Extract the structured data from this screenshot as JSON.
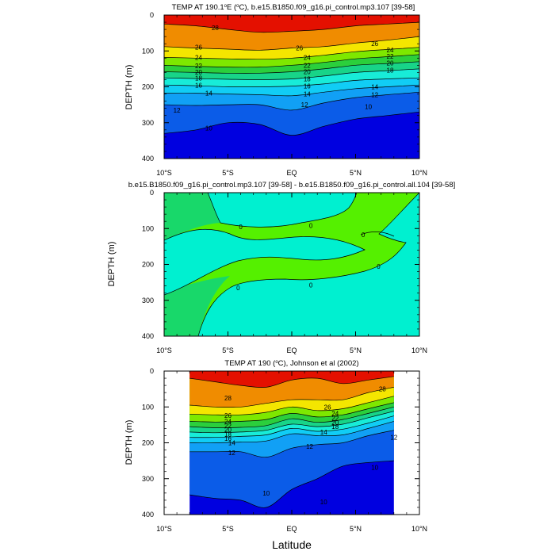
{
  "figure": {
    "xlabel": "Latitude"
  },
  "chart_data": [
    {
      "type": "contour",
      "title_pre": "TEMP AT 190.1",
      "title_deg": "o",
      "title_mid": "E (",
      "title_unitdeg": "o",
      "title_post": "C), b.e15.B1850.f09_g16.pi_control.mp3.107 [39-58]",
      "ylabel": "DEPTH (m)",
      "xlim": [
        -10,
        10
      ],
      "ylim": [
        0,
        400
      ],
      "x_ticks": [
        "10°S",
        "5°S",
        "EQ",
        "5°N",
        "10°N"
      ],
      "y_ticks": [
        "0",
        "100",
        "200",
        "300",
        "400"
      ],
      "contour_levels": [
        10,
        12,
        14,
        16,
        18,
        20,
        22,
        24,
        26,
        28
      ],
      "isotherm_depths": {
        "lat": [
          -10,
          -7.5,
          -5,
          -2.5,
          0,
          2.5,
          5,
          7.5,
          10
        ],
        "28": [
          25,
          30,
          40,
          48,
          45,
          40,
          30,
          25,
          20
        ],
        "26": [
          88,
          92,
          95,
          98,
          92,
          88,
          78,
          70,
          60
        ],
        "24": [
          118,
          120,
          122,
          123,
          120,
          112,
          102,
          96,
          90
        ],
        "22": [
          140,
          143,
          145,
          145,
          140,
          132,
          122,
          116,
          110
        ],
        "20": [
          158,
          160,
          162,
          162,
          158,
          150,
          140,
          135,
          130
        ],
        "18": [
          175,
          177,
          179,
          180,
          178,
          170,
          160,
          155,
          150
        ],
        "16": [
          195,
          197,
          200,
          200,
          198,
          192,
          182,
          178,
          175
        ],
        "14": [
          218,
          218,
          220,
          222,
          225,
          215,
          205,
          200,
          195
        ],
        "12": [
          250,
          252,
          250,
          250,
          265,
          245,
          230,
          222,
          215
        ],
        "10": [
          330,
          320,
          300,
          305,
          335,
          310,
          290,
          280,
          270
        ]
      },
      "labels": [
        {
          "text": "28",
          "lat": -6.0,
          "depth": 35
        },
        {
          "text": "26",
          "lat": -7.3,
          "depth": 90
        },
        {
          "text": "26",
          "lat": 0.6,
          "depth": 92
        },
        {
          "text": "26",
          "lat": 6.5,
          "depth": 80
        },
        {
          "text": "24",
          "lat": -7.3,
          "depth": 118
        },
        {
          "text": "24",
          "lat": 1.2,
          "depth": 118
        },
        {
          "text": "24",
          "lat": 7.7,
          "depth": 97
        },
        {
          "text": "22",
          "lat": -7.3,
          "depth": 141
        },
        {
          "text": "22",
          "lat": 1.2,
          "depth": 140
        },
        {
          "text": "22",
          "lat": 7.7,
          "depth": 115
        },
        {
          "text": "20",
          "lat": -7.3,
          "depth": 159
        },
        {
          "text": "20",
          "lat": 1.2,
          "depth": 158
        },
        {
          "text": "20",
          "lat": 7.7,
          "depth": 134
        },
        {
          "text": "18",
          "lat": -7.3,
          "depth": 176
        },
        {
          "text": "18",
          "lat": 1.2,
          "depth": 178
        },
        {
          "text": "18",
          "lat": 7.7,
          "depth": 154
        },
        {
          "text": "16",
          "lat": -7.3,
          "depth": 196
        },
        {
          "text": "16",
          "lat": 1.2,
          "depth": 198
        },
        {
          "text": "14",
          "lat": -6.5,
          "depth": 218
        },
        {
          "text": "14",
          "lat": 1.2,
          "depth": 220
        },
        {
          "text": "14",
          "lat": 6.5,
          "depth": 200
        },
        {
          "text": "12",
          "lat": 1.0,
          "depth": 250
        },
        {
          "text": "12",
          "lat": 6.5,
          "depth": 222
        },
        {
          "text": "12",
          "lat": -9.0,
          "depth": 265
        },
        {
          "text": "10",
          "lat": -6.5,
          "depth": 315
        },
        {
          "text": "10",
          "lat": 6.0,
          "depth": 255
        }
      ]
    },
    {
      "type": "contour",
      "title": "b.e15.B1850.f09_g16.pi_control.mp3.107 [39-58] - b.e15.B1850.f09_g16.pi_control.all.104 [39-58]",
      "ylabel": "DEPTH (m)",
      "xlim": [
        -10,
        10
      ],
      "ylim": [
        0,
        400
      ],
      "x_ticks": [
        "10°S",
        "5°S",
        "EQ",
        "5°N",
        "10°N"
      ],
      "y_ticks": [
        "0",
        "100",
        "200",
        "300",
        "400"
      ],
      "contour_levels": [
        0
      ],
      "regions": [
        "positive (green)",
        "near zero (cyan)"
      ],
      "labels": [
        {
          "text": "0",
          "lat": -4.0,
          "depth": 95
        },
        {
          "text": "0",
          "lat": 1.5,
          "depth": 92
        },
        {
          "text": "0",
          "lat": 5.6,
          "depth": 117
        },
        {
          "text": "0",
          "lat": 6.8,
          "depth": 205
        },
        {
          "text": "0",
          "lat": -4.2,
          "depth": 265
        },
        {
          "text": "0",
          "lat": 1.5,
          "depth": 258
        }
      ]
    },
    {
      "type": "contour",
      "title_pre": "TEMP AT 190 (",
      "title_unitdeg": "o",
      "title_post": "C), Johnson et al (2002)",
      "ylabel": "DEPTH (m)",
      "xlim": [
        -10,
        10
      ],
      "ylim": [
        0,
        400
      ],
      "data_lat_range": [
        -8,
        8
      ],
      "x_ticks": [
        "10°S",
        "5°S",
        "EQ",
        "5°N",
        "10°N"
      ],
      "y_ticks": [
        "0",
        "100",
        "200",
        "300",
        "400"
      ],
      "contour_levels": [
        10,
        12,
        14,
        16,
        18,
        20,
        22,
        24,
        26,
        28
      ],
      "isotherm_depths": {
        "lat": [
          -8,
          -6,
          -4,
          -2,
          0,
          2,
          4,
          6,
          8
        ],
        "28": [
          20,
          30,
          40,
          45,
          25,
          20,
          35,
          25,
          15
        ],
        "26": [
          95,
          100,
          100,
          90,
          80,
          80,
          80,
          60,
          45
        ],
        "24": [
          120,
          122,
          122,
          115,
          100,
          110,
          105,
          88,
          70
        ],
        "22": [
          140,
          142,
          140,
          135,
          118,
          128,
          122,
          105,
          88
        ],
        "20": [
          155,
          158,
          157,
          152,
          133,
          143,
          135,
          118,
          100
        ],
        "18": [
          170,
          172,
          170,
          165,
          148,
          155,
          148,
          130,
          112
        ],
        "16": [
          185,
          185,
          182,
          178,
          160,
          168,
          162,
          145,
          125
        ],
        "14": [
          200,
          200,
          198,
          195,
          175,
          180,
          178,
          160,
          140
        ],
        "12": [
          225,
          225,
          225,
          240,
          215,
          205,
          200,
          180,
          165
        ],
        "10": [
          345,
          355,
          360,
          380,
          330,
          300,
          265,
          255,
          250
        ]
      },
      "labels": [
        {
          "text": "28",
          "lat": -5.0,
          "depth": 75
        },
        {
          "text": "28",
          "lat": 7.1,
          "depth": 50
        },
        {
          "text": "26",
          "lat": -5.0,
          "depth": 124
        },
        {
          "text": "26",
          "lat": 2.8,
          "depth": 100
        },
        {
          "text": "24",
          "lat": -5.0,
          "depth": 140
        },
        {
          "text": "24",
          "lat": 3.4,
          "depth": 118
        },
        {
          "text": "22",
          "lat": -5.0,
          "depth": 153
        },
        {
          "text": "22",
          "lat": 3.4,
          "depth": 132
        },
        {
          "text": "20",
          "lat": -5.0,
          "depth": 164
        },
        {
          "text": "20",
          "lat": 3.4,
          "depth": 144
        },
        {
          "text": "18",
          "lat": -5.0,
          "depth": 176
        },
        {
          "text": "18",
          "lat": 3.4,
          "depth": 155
        },
        {
          "text": "16",
          "lat": -5.0,
          "depth": 188
        },
        {
          "text": "14",
          "lat": -4.7,
          "depth": 200
        },
        {
          "text": "14",
          "lat": 2.5,
          "depth": 170
        },
        {
          "text": "12",
          "lat": -4.7,
          "depth": 228
        },
        {
          "text": "12",
          "lat": 1.4,
          "depth": 210
        },
        {
          "text": "12",
          "lat": 8.0,
          "depth": 185
        },
        {
          "text": "10",
          "lat": -2.0,
          "depth": 340
        },
        {
          "text": "10",
          "lat": 2.5,
          "depth": 365
        },
        {
          "text": "10",
          "lat": 6.5,
          "depth": 268
        }
      ]
    }
  ],
  "colors": {
    "t_lt10": "#0000e0",
    "t_10_12": "#0b5ce8",
    "t_12_14": "#11a0f5",
    "t_14_16": "#11cdf5",
    "t_16_18": "#18ecd8",
    "t_18_20": "#18d488",
    "t_20_22": "#2bcf3c",
    "t_22_24": "#7ee800",
    "t_24_26": "#f4e600",
    "t_26_28": "#f08c00",
    "t_gt28": "#e41000",
    "diff_pos": "#55f000",
    "diff_pos_edge": "#18d86a",
    "diff_zero": "#00f0d0"
  }
}
